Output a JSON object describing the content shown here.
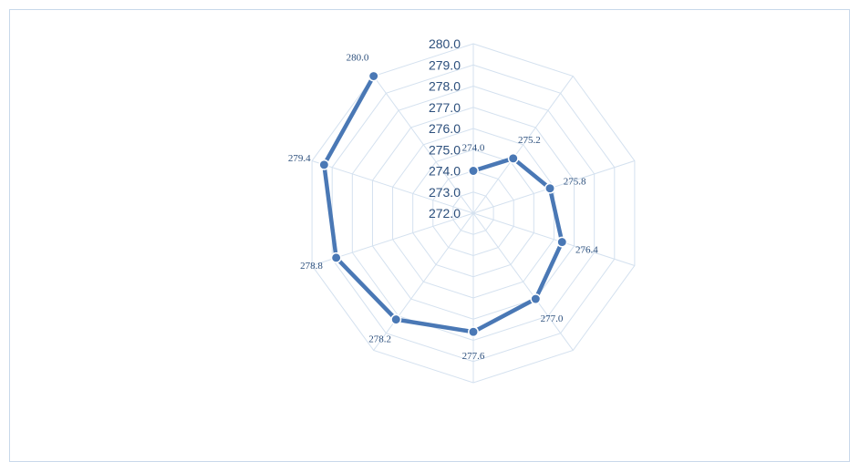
{
  "chart_data": {
    "type": "radar",
    "categories": [
      "",
      "",
      "",
      "",
      "",
      "",
      "",
      "",
      "",
      ""
    ],
    "series": [
      {
        "values": [
          274.0,
          275.2,
          275.8,
          276.4,
          277.0,
          277.6,
          278.2,
          278.8,
          279.4,
          280.0
        ]
      }
    ],
    "data_labels": [
      "274.0",
      "275.2",
      "275.8",
      "276.4",
      "277.0",
      "277.6",
      "278.2",
      "278.8",
      "279.4",
      "280.0"
    ],
    "rlim": [
      272.0,
      280.0
    ],
    "tick_labels": [
      "272.0",
      "273.0",
      "274.0",
      "275.0",
      "276.0",
      "277.0",
      "278.0",
      "279.0",
      "280.0"
    ],
    "grid": true,
    "legend": "none",
    "colors": {
      "series": "#4a78b5",
      "grid": "#d4e1ef",
      "text": "#2c4f7c",
      "border": "#c8d8ea"
    }
  }
}
